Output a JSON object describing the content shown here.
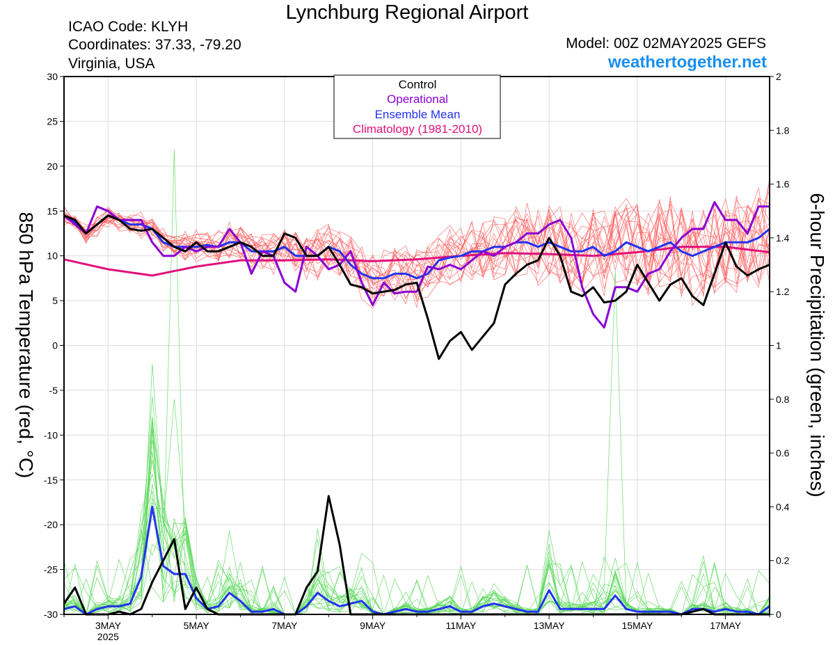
{
  "header": {
    "title": "Lynchburg Regional Airport",
    "icao": "ICAO Code: KLYH",
    "coordinates": "Coordinates: 37.33, -79.20",
    "region": "Virginia, USA",
    "model": "Model: 00Z 02MAY2025 GEFS",
    "site": "weathertogether.net"
  },
  "chart_data": {
    "type": "line",
    "ylabel_left": "850 hPa Temperature (red, °C)",
    "ylabel_right": "6-hour Precipitation (green, inches)",
    "x_unit": "days since 00Z 02MAY2025",
    "xlim": [
      0,
      16
    ],
    "ylim_left": [
      -30,
      30
    ],
    "ylim_right": [
      0,
      2
    ],
    "grid": true,
    "left_ticks": [
      30,
      25,
      20,
      15,
      10,
      5,
      0,
      -5,
      -10,
      -15,
      -20,
      -25,
      -30
    ],
    "right_ticks": [
      2,
      1.8,
      1.6,
      1.4,
      1.2,
      1,
      0.8,
      0.6,
      0.4,
      0.2,
      0
    ],
    "x_ticks": [
      {
        "day": 1,
        "label": "3MAY",
        "sub": "2025"
      },
      {
        "day": 3,
        "label": "5MAY",
        "sub": ""
      },
      {
        "day": 5,
        "label": "7MAY",
        "sub": ""
      },
      {
        "day": 7,
        "label": "9MAY",
        "sub": ""
      },
      {
        "day": 9,
        "label": "11MAY",
        "sub": ""
      },
      {
        "day": 11,
        "label": "13MAY",
        "sub": ""
      },
      {
        "day": 13,
        "label": "15MAY",
        "sub": ""
      },
      {
        "day": 15,
        "label": "17MAY",
        "sub": ""
      }
    ],
    "legend": {
      "position": "top-center",
      "entries": [
        {
          "name": "Control",
          "color": "#000000"
        },
        {
          "name": "Operational",
          "color": "#8a00d4"
        },
        {
          "name": "Ensemble Mean",
          "color": "#2233ee"
        },
        {
          "name": "Climatology (1981-2010)",
          "color": "#e0107a"
        }
      ]
    },
    "colors": {
      "member_temp": "#ff5a5a",
      "member_precip": "#5ad85a",
      "control": "#000000",
      "operational": "#8a00d4",
      "mean": "#2233ee",
      "climatology": "#e0107a"
    },
    "series": [
      {
        "name": "Control",
        "variable": "850 hPa Temperature",
        "x": [
          0,
          0.25,
          0.5,
          0.75,
          1,
          1.25,
          1.5,
          1.75,
          2,
          2.25,
          2.5,
          2.75,
          3,
          3.25,
          3.5,
          3.75,
          4,
          4.25,
          4.5,
          4.75,
          5,
          5.25,
          5.5,
          5.75,
          6,
          6.25,
          6.5,
          6.75,
          7,
          7.25,
          7.5,
          7.75,
          8,
          8.25,
          8.5,
          8.75,
          9,
          9.25,
          9.5,
          9.75,
          10,
          10.25,
          10.5,
          10.75,
          11,
          11.25,
          11.5,
          11.75,
          12,
          12.25,
          12.5,
          12.75,
          13,
          13.25,
          13.5,
          13.75,
          14,
          14.25,
          14.5,
          14.75,
          15,
          15.25,
          15.5,
          15.75,
          16
        ],
        "y": [
          14.5,
          14,
          12.5,
          13.5,
          14.5,
          14,
          13,
          12.8,
          13,
          12,
          11,
          10.5,
          11.5,
          10.5,
          10.5,
          11,
          11.5,
          11,
          10,
          10,
          12.5,
          12,
          10,
          10,
          11,
          9,
          6.8,
          6.5,
          5.8,
          6,
          6.2,
          6.8,
          7,
          3,
          -1.5,
          0.5,
          1.5,
          -0.5,
          1,
          2.5,
          6.8,
          8,
          9,
          9.5,
          12,
          10,
          6,
          5.5,
          6.5,
          4.8,
          5,
          6,
          9,
          7,
          5,
          6.8,
          7.5,
          5.5,
          4.5,
          8,
          11.5,
          8.8,
          7.8,
          8.5,
          9
        ]
      },
      {
        "name": "Operational",
        "variable": "850 hPa Temperature",
        "x": [
          0,
          0.25,
          0.5,
          0.75,
          1,
          1.25,
          1.5,
          1.75,
          2,
          2.25,
          2.5,
          2.75,
          3,
          3.25,
          3.5,
          3.75,
          4,
          4.25,
          4.5,
          4.75,
          5,
          5.25,
          5.5,
          5.75,
          6,
          6.25,
          6.5,
          6.75,
          7,
          7.25,
          7.5,
          7.75,
          8,
          8.25,
          8.5,
          8.75,
          9,
          9.25,
          9.5,
          9.75,
          10,
          10.25,
          10.5,
          10.75,
          11,
          11.25,
          11.5,
          11.75,
          12,
          12.25,
          12.5,
          12.75,
          13,
          13.25,
          13.5,
          13.75,
          14,
          14.25,
          14.5,
          14.75,
          15,
          15.25,
          15.5,
          15.75,
          16
        ],
        "y": [
          14.5,
          13.5,
          12.5,
          15.5,
          15,
          14,
          14,
          14,
          11.5,
          10,
          10,
          11,
          10.5,
          11,
          11,
          13,
          11.5,
          8,
          10.5,
          10,
          7,
          6,
          11,
          10,
          8.5,
          9,
          10.5,
          7,
          4.5,
          7,
          5.8,
          6,
          6,
          8.8,
          8.5,
          9,
          8.5,
          9.5,
          10.5,
          10,
          11,
          11.5,
          12.5,
          12.5,
          13.5,
          14,
          12,
          6.5,
          3.5,
          2,
          6.5,
          6.5,
          6,
          8,
          8.5,
          10.5,
          12,
          13,
          13,
          16,
          14,
          14,
          12.5,
          15.5,
          15.5
        ]
      },
      {
        "name": "Ensemble Mean",
        "variable": "850 hPa Temperature",
        "x": [
          0,
          0.25,
          0.5,
          0.75,
          1,
          1.25,
          1.5,
          1.75,
          2,
          2.25,
          2.5,
          2.75,
          3,
          3.25,
          3.5,
          3.75,
          4,
          4.25,
          4.5,
          4.75,
          5,
          5.25,
          5.5,
          5.75,
          6,
          6.25,
          6.5,
          6.75,
          7,
          7.25,
          7.5,
          7.75,
          8,
          8.25,
          8.5,
          8.75,
          9,
          9.25,
          9.5,
          9.75,
          10,
          10.25,
          10.5,
          10.75,
          11,
          11.25,
          11.5,
          11.75,
          12,
          12.25,
          12.5,
          12.75,
          13,
          13.25,
          13.5,
          13.75,
          14,
          14.25,
          14.5,
          14.75,
          15,
          15.25,
          15.5,
          15.75,
          16
        ],
        "y": [
          14.5,
          13.8,
          12.5,
          13.5,
          14.5,
          14,
          13.5,
          13.5,
          13,
          11.5,
          11,
          11,
          11,
          11.2,
          11,
          11.5,
          11.5,
          10.5,
          10.5,
          10.5,
          11,
          10,
          10,
          10,
          11,
          10.5,
          9,
          8,
          7.5,
          7.5,
          8,
          8,
          7.5,
          8,
          9.5,
          9.8,
          10,
          10.5,
          10.5,
          11,
          11,
          11.5,
          11.5,
          11,
          11.5,
          11,
          10.5,
          10.5,
          11,
          10,
          10.5,
          11.5,
          11,
          10.5,
          11,
          11.5,
          10.5,
          10,
          10.5,
          11,
          11.5,
          11.5,
          11.5,
          12,
          13
        ]
      },
      {
        "name": "Climatology (1981-2010)",
        "variable": "850 hPa Temperature",
        "x": [
          0,
          1,
          2,
          3,
          4,
          5,
          6,
          7,
          8,
          9,
          10,
          11,
          12,
          13,
          14,
          15,
          16
        ],
        "y": [
          9.6,
          8.5,
          7.8,
          8.8,
          9.5,
          9.5,
          9.6,
          9.4,
          9.6,
          10,
          10.3,
          10.2,
          10,
          10.4,
          11,
          11,
          10.4
        ]
      },
      {
        "name": "Control",
        "variable": "6-hour Precipitation",
        "x": [
          0,
          0.25,
          0.5,
          0.75,
          1,
          1.25,
          1.5,
          1.75,
          2,
          2.25,
          2.5,
          2.75,
          3,
          3.25,
          3.5,
          3.75,
          4,
          4.25,
          4.5,
          4.75,
          5,
          5.25,
          5.5,
          5.75,
          6,
          6.25,
          6.5,
          6.75,
          7,
          7.25,
          7.5,
          7.75,
          8,
          8.25,
          8.5,
          8.75,
          9,
          9.25,
          9.5,
          9.75,
          10,
          10.25,
          10.5,
          10.75,
          11,
          11.25,
          11.5,
          11.75,
          12,
          12.25,
          12.5,
          12.75,
          13,
          13.25,
          13.5,
          13.75,
          14,
          14.25,
          14.5,
          14.75,
          15,
          15.25,
          15.5,
          15.75,
          16
        ],
        "y": [
          0.04,
          0.1,
          0,
          0,
          0,
          0.01,
          0,
          0.02,
          0.12,
          0.2,
          0.28,
          0.02,
          0.1,
          0.02,
          0,
          0,
          0,
          0,
          0,
          0,
          0,
          0,
          0.1,
          0.16,
          0.44,
          0.26,
          0,
          0,
          0,
          0,
          0,
          0,
          0,
          0,
          0,
          0,
          0,
          0,
          0,
          0,
          0,
          0,
          0,
          0,
          0,
          0,
          0,
          0,
          0,
          0,
          0,
          0,
          0,
          0,
          0,
          0,
          0,
          0.01,
          0.02,
          0,
          0,
          0,
          0,
          0,
          0
        ]
      },
      {
        "name": "Ensemble Mean",
        "variable": "6-hour Precipitation",
        "x": [
          0,
          0.25,
          0.5,
          0.75,
          1,
          1.25,
          1.5,
          1.75,
          2,
          2.25,
          2.5,
          2.75,
          3,
          3.25,
          3.5,
          3.75,
          4,
          4.25,
          4.5,
          4.75,
          5,
          5.25,
          5.5,
          5.75,
          6,
          6.25,
          6.5,
          6.75,
          7,
          7.25,
          7.5,
          7.75,
          8,
          8.25,
          8.5,
          8.75,
          9,
          9.25,
          9.5,
          9.75,
          10,
          10.25,
          10.5,
          10.75,
          11,
          11.25,
          11.5,
          11.75,
          12,
          12.25,
          12.5,
          12.75,
          13,
          13.25,
          13.5,
          13.75,
          14,
          14.25,
          14.5,
          14.75,
          15,
          15.25,
          15.5,
          15.75,
          16
        ],
        "y": [
          0.02,
          0.03,
          0,
          0.02,
          0.03,
          0.03,
          0.04,
          0.14,
          0.4,
          0.18,
          0.15,
          0.15,
          0.06,
          0.02,
          0.03,
          0.08,
          0.05,
          0.01,
          0.01,
          0.02,
          0,
          0,
          0.03,
          0.08,
          0.05,
          0.03,
          0.04,
          0.05,
          0.01,
          0,
          0.01,
          0.02,
          0.01,
          0.01,
          0.02,
          0.03,
          0.01,
          0.01,
          0.03,
          0.04,
          0.03,
          0.02,
          0.01,
          0.01,
          0.09,
          0.02,
          0.02,
          0.02,
          0.02,
          0.02,
          0.07,
          0.02,
          0.01,
          0.01,
          0.01,
          0.01,
          0,
          0.02,
          0.02,
          0.01,
          0.02,
          0.01,
          0.01,
          0,
          0.03
        ]
      }
    ]
  }
}
